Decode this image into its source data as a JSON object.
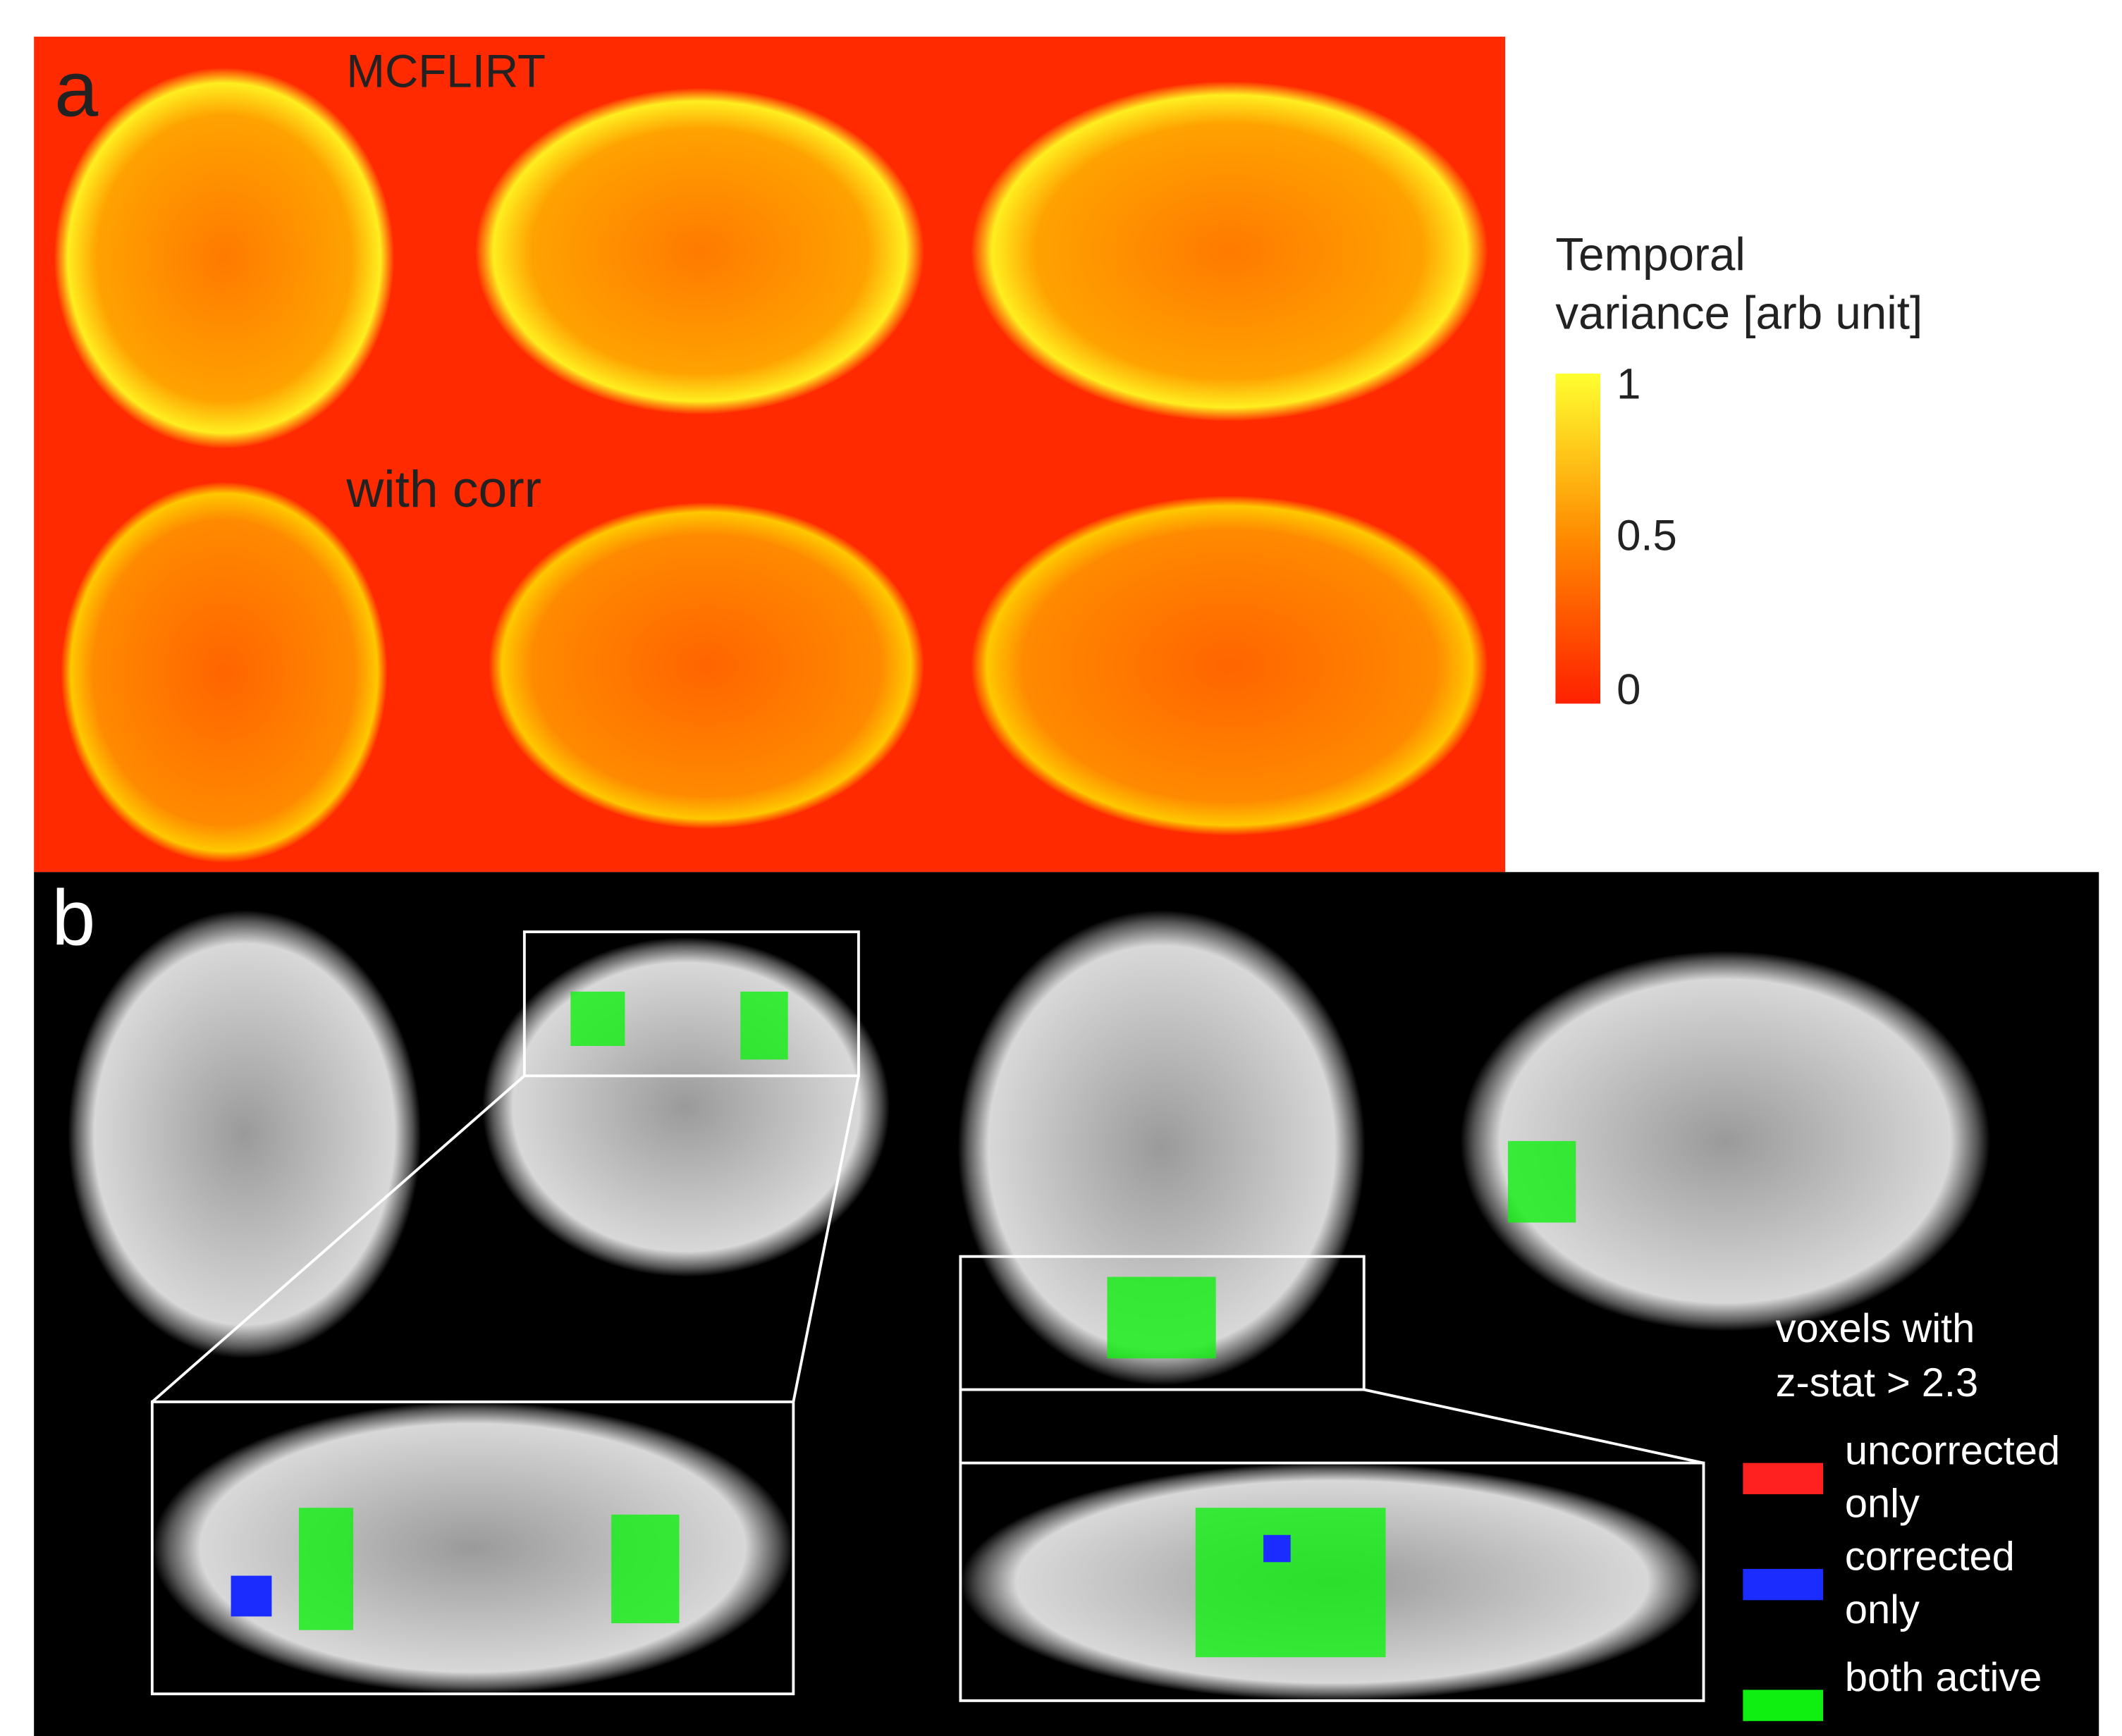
{
  "panel_a": {
    "label": "a",
    "rows": [
      "MCFLIRT",
      "with corr"
    ],
    "colorbar": {
      "title_lines": [
        "Temporal",
        "variance [arb unit]"
      ],
      "ticks": [
        1,
        0.5,
        0
      ],
      "range": [
        0,
        1
      ]
    }
  },
  "panel_b": {
    "label": "b",
    "legend": {
      "title_lines": [
        "voxels with",
        "z-stat > 2.3"
      ],
      "entries": [
        {
          "lines": [
            "uncorrected",
            "only"
          ],
          "color": "#ff2020"
        },
        {
          "lines": [
            "corrected",
            "only"
          ],
          "color": "#1a2cff"
        },
        {
          "lines": [
            "both active"
          ],
          "color": "#10f010"
        }
      ]
    }
  }
}
